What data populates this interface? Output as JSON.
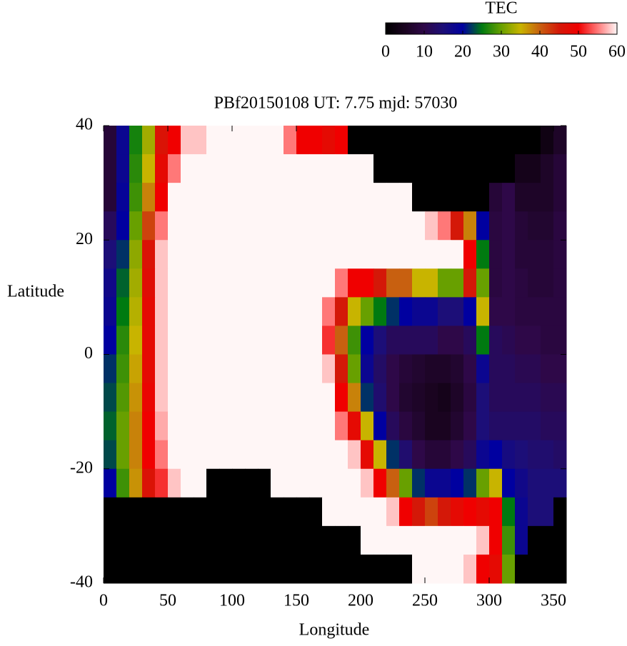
{
  "chart_data": {
    "type": "heatmap",
    "title": "PBf20150108  UT: 7.75  mjd: 57030",
    "xlabel": "Longitude",
    "ylabel": "Latitude",
    "xlim": [
      0,
      360
    ],
    "ylim": [
      40,
      -40
    ],
    "xticks": [
      0,
      50,
      100,
      150,
      200,
      250,
      300,
      350
    ],
    "yticks": [
      40,
      20,
      0,
      -20,
      -40
    ],
    "colorbar": {
      "label": "TEC",
      "lim": [
        0,
        60
      ],
      "ticks": [
        0,
        10,
        20,
        30,
        40,
        50,
        60
      ]
    },
    "colorscale": [
      [
        0,
        "#000000"
      ],
      [
        5,
        "#1a0420"
      ],
      [
        10,
        "#2e0848"
      ],
      [
        15,
        "#1c0e78"
      ],
      [
        20,
        "#0000a0"
      ],
      [
        25,
        "#007a10"
      ],
      [
        30,
        "#68a000"
      ],
      [
        35,
        "#c8b400"
      ],
      [
        40,
        "#c86010"
      ],
      [
        45,
        "#d41808"
      ],
      [
        50,
        "#f00000"
      ],
      [
        55,
        "#ff7878"
      ],
      [
        60,
        "#fff6f6"
      ]
    ],
    "z": [
      [
        8,
        18,
        26,
        33,
        46,
        50,
        58,
        58,
        60,
        60,
        60,
        60,
        60,
        60,
        55,
        50,
        50,
        48,
        50,
        0,
        0,
        0,
        0,
        0,
        0,
        0,
        0,
        0,
        0,
        0,
        0,
        0,
        0,
        0,
        3,
        6
      ],
      [
        8,
        18,
        27,
        35,
        48,
        55,
        60,
        60,
        60,
        60,
        60,
        60,
        60,
        60,
        60,
        60,
        60,
        60,
        60,
        60,
        60,
        0,
        0,
        0,
        0,
        0,
        0,
        0,
        0,
        0,
        0,
        0,
        4,
        4,
        6,
        8
      ],
      [
        8,
        19,
        28,
        38,
        50,
        60,
        60,
        60,
        60,
        60,
        60,
        60,
        60,
        60,
        60,
        60,
        60,
        60,
        60,
        60,
        60,
        60,
        60,
        60,
        0,
        0,
        0,
        0,
        0,
        0,
        8,
        10,
        6,
        6,
        6,
        8
      ],
      [
        12,
        20,
        30,
        42,
        55,
        60,
        60,
        60,
        60,
        60,
        60,
        60,
        60,
        60,
        60,
        60,
        60,
        60,
        60,
        60,
        60,
        60,
        60,
        60,
        60,
        58,
        55,
        45,
        38,
        20,
        9,
        10,
        8,
        7,
        7,
        9
      ],
      [
        15,
        22,
        32,
        46,
        58,
        60,
        60,
        60,
        60,
        60,
        60,
        60,
        60,
        60,
        60,
        60,
        60,
        60,
        60,
        60,
        60,
        60,
        60,
        60,
        60,
        60,
        60,
        60,
        50,
        25,
        9,
        10,
        8,
        8,
        8,
        9
      ],
      [
        17,
        24,
        33,
        47,
        58,
        60,
        60,
        60,
        60,
        60,
        60,
        60,
        60,
        60,
        60,
        60,
        60,
        60,
        55,
        50,
        50,
        45,
        40,
        40,
        35,
        35,
        30,
        30,
        45,
        30,
        9,
        10,
        9,
        8,
        8,
        9
      ],
      [
        18,
        25,
        34,
        48,
        58,
        60,
        60,
        60,
        60,
        60,
        60,
        60,
        60,
        60,
        60,
        60,
        60,
        55,
        45,
        35,
        30,
        25,
        22,
        20,
        18,
        18,
        15,
        15,
        20,
        35,
        10,
        10,
        9,
        9,
        9,
        9
      ],
      [
        20,
        27,
        35,
        48,
        58,
        60,
        60,
        60,
        60,
        60,
        60,
        60,
        60,
        60,
        60,
        60,
        60,
        52,
        40,
        28,
        20,
        15,
        12,
        12,
        12,
        12,
        10,
        10,
        12,
        25,
        12,
        11,
        10,
        10,
        9,
        9
      ],
      [
        22,
        28,
        36,
        48,
        58,
        60,
        60,
        60,
        60,
        60,
        60,
        60,
        60,
        60,
        60,
        60,
        60,
        58,
        45,
        30,
        18,
        13,
        10,
        8,
        7,
        6,
        6,
        7,
        10,
        18,
        12,
        12,
        11,
        11,
        10,
        10
      ],
      [
        23,
        29,
        37,
        49,
        58,
        60,
        60,
        60,
        60,
        60,
        60,
        60,
        60,
        60,
        60,
        60,
        60,
        60,
        50,
        38,
        22,
        14,
        10,
        7,
        6,
        5,
        4,
        6,
        9,
        15,
        12,
        12,
        12,
        12,
        11,
        11
      ],
      [
        24,
        30,
        38,
        50,
        57,
        60,
        60,
        60,
        60,
        60,
        60,
        60,
        60,
        60,
        60,
        60,
        60,
        60,
        55,
        48,
        35,
        20,
        12,
        9,
        7,
        5,
        5,
        7,
        10,
        15,
        13,
        13,
        13,
        13,
        12,
        12
      ],
      [
        23,
        30,
        38,
        50,
        55,
        60,
        60,
        60,
        60,
        60,
        60,
        60,
        60,
        60,
        60,
        60,
        60,
        60,
        60,
        58,
        48,
        35,
        22,
        14,
        10,
        8,
        8,
        10,
        12,
        18,
        20,
        16,
        15,
        14,
        14,
        13
      ],
      [
        20,
        28,
        37,
        46,
        52,
        58,
        60,
        60,
        0,
        0,
        0,
        0,
        0,
        60,
        60,
        60,
        60,
        60,
        60,
        60,
        58,
        50,
        40,
        30,
        22,
        18,
        18,
        20,
        22,
        30,
        35,
        20,
        17,
        15,
        15,
        15
      ],
      [
        0,
        0,
        0,
        0,
        0,
        0,
        0,
        0,
        0,
        0,
        0,
        0,
        0,
        0,
        0,
        0,
        0,
        60,
        60,
        60,
        60,
        60,
        58,
        50,
        45,
        42,
        45,
        48,
        50,
        48,
        50,
        25,
        18,
        15,
        15,
        0
      ],
      [
        0,
        0,
        0,
        0,
        0,
        0,
        0,
        0,
        0,
        0,
        0,
        0,
        0,
        0,
        0,
        0,
        0,
        0,
        0,
        0,
        60,
        60,
        60,
        60,
        60,
        60,
        60,
        60,
        60,
        58,
        50,
        28,
        18,
        0,
        0,
        0
      ],
      [
        0,
        0,
        0,
        0,
        0,
        0,
        0,
        0,
        0,
        0,
        0,
        0,
        0,
        0,
        0,
        0,
        0,
        0,
        0,
        0,
        0,
        0,
        0,
        0,
        60,
        60,
        60,
        60,
        58,
        50,
        48,
        30,
        0,
        0,
        0,
        0
      ]
    ]
  }
}
